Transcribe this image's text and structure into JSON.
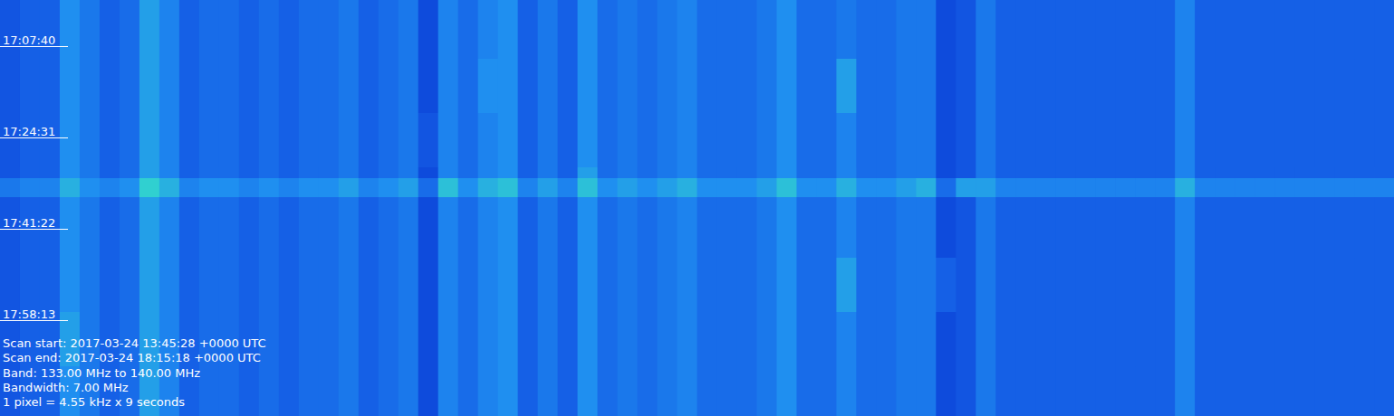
{
  "chart_data": {
    "type": "heatmap",
    "xlim": [
      133,
      140
    ],
    "ylim": [
      61150,
      65750
    ],
    "yticks": [
      {
        "value": 61660,
        "label": "17:07:40"
      },
      {
        "value": 62671,
        "label": "17:24:31"
      },
      {
        "value": 63682,
        "label": "17:41:22"
      },
      {
        "value": 64693,
        "label": "17:58:13"
      }
    ],
    "tick_labels": "y",
    "zlim": [
      0,
      10
    ],
    "x_edges": [
      133,
      133.1,
      133.2,
      133.3,
      133.4,
      133.5,
      133.6,
      133.7,
      133.8,
      133.9,
      134,
      134.1,
      134.2,
      134.3,
      134.4,
      134.5,
      134.6,
      134.7,
      134.8,
      134.9,
      135,
      135.1,
      135.2,
      135.3,
      135.4,
      135.5,
      135.6,
      135.7,
      135.8,
      135.9,
      136,
      136.1,
      136.2,
      136.3,
      136.4,
      136.5,
      136.6,
      136.7,
      136.8,
      136.9,
      137,
      137.1,
      137.2,
      137.3,
      137.4,
      137.5,
      137.6,
      137.7,
      137.8,
      137.9,
      138,
      138.1,
      138.2,
      138.3,
      138.4,
      138.5,
      138.6,
      138.7,
      138.8,
      138.9,
      139,
      139.1,
      139.2,
      139.3,
      139.4,
      139.5,
      139.6,
      139.7,
      139.8,
      139.9,
      140
    ],
    "y_edges": [
      61150,
      61800,
      62400,
      63000,
      63120,
      63330,
      64000,
      64600,
      65200,
      65750
    ],
    "cells": [
      [
        2.5,
        3,
        3,
        5,
        4,
        3,
        3.5,
        5.5,
        4.5,
        3,
        3.5,
        3.5,
        3,
        3.5,
        3,
        3.5,
        3.5,
        4,
        3,
        3.5,
        4,
        2,
        4.5,
        3.5,
        4.5,
        5,
        3,
        4,
        3,
        5,
        3.5,
        4,
        3.5,
        4,
        4.5,
        3.5,
        3.5,
        3.5,
        4,
        5,
        3.5,
        3.5,
        4,
        3.5,
        3.5,
        4,
        4,
        2,
        2.5,
        4,
        3,
        3,
        3,
        3,
        3,
        3,
        3,
        3,
        3,
        4.5,
        3,
        3,
        3,
        3,
        3,
        3,
        3,
        3,
        3,
        3
      ],
      [
        2.5,
        3,
        3,
        5,
        4,
        3,
        3.5,
        5.5,
        4.5,
        3,
        3.5,
        3.5,
        3,
        3.5,
        3,
        3.5,
        3.5,
        4,
        3,
        3.5,
        4,
        2,
        4.5,
        3.5,
        5,
        5,
        3,
        4,
        3,
        5,
        3.5,
        4,
        3.5,
        4,
        4.5,
        3.5,
        3.5,
        3.5,
        4,
        5,
        3.5,
        3.5,
        5.5,
        3.5,
        3.5,
        4,
        4,
        2,
        2.5,
        4,
        3,
        3,
        3,
        3,
        3,
        3,
        3,
        3,
        3,
        4.5,
        3,
        3,
        3,
        3,
        3,
        3,
        3,
        3,
        3,
        3
      ],
      [
        2.5,
        3,
        3,
        5,
        4,
        3,
        3.5,
        5.5,
        4.5,
        3,
        3.5,
        3.5,
        3,
        3.5,
        3,
        3.5,
        3.5,
        4,
        3,
        3.5,
        4,
        2.5,
        4.5,
        3.5,
        4.5,
        5,
        3,
        4,
        3,
        5,
        3.5,
        4,
        3.5,
        4,
        4.5,
        3.5,
        3.5,
        3.5,
        4,
        5,
        3.5,
        3.5,
        4.5,
        3.5,
        3.5,
        4,
        4,
        2,
        2.5,
        4,
        3,
        3,
        3,
        3,
        3,
        3,
        3,
        3,
        3,
        4.5,
        3,
        3,
        3,
        3,
        3,
        3,
        3,
        3,
        3,
        3
      ],
      [
        2.5,
        3,
        3,
        5,
        4,
        3,
        3.5,
        5.5,
        4.5,
        3,
        3.5,
        3.5,
        3,
        3.5,
        3,
        3.5,
        3.5,
        4,
        3,
        3.5,
        4,
        2,
        4.5,
        3.5,
        4.5,
        5,
        3,
        4,
        3,
        5.5,
        3.5,
        4,
        3.5,
        4,
        4.5,
        3.5,
        3.5,
        3.5,
        4,
        5,
        3.5,
        3.5,
        4.5,
        3.5,
        3.5,
        4,
        4,
        2,
        2.5,
        4,
        3,
        3,
        3,
        3,
        3,
        3,
        3,
        3,
        3,
        4.5,
        3,
        3,
        3,
        3,
        3,
        3,
        3,
        3,
        3,
        3
      ],
      [
        4,
        4.5,
        4.5,
        6,
        5,
        4.5,
        5,
        7,
        6,
        4.5,
        5,
        5,
        4.5,
        5,
        4.5,
        5,
        5,
        5.5,
        4.5,
        5,
        5.5,
        3.5,
        6.5,
        5,
        6,
        6.5,
        4.5,
        5.5,
        4.5,
        6.5,
        5,
        5.5,
        5,
        5.5,
        6,
        5,
        5,
        5,
        5.5,
        6.5,
        5,
        5,
        6,
        5,
        5,
        5.5,
        6,
        3.5,
        5.5,
        5.5,
        4.5,
        4.5,
        4.5,
        4.5,
        4.5,
        4.5,
        4.5,
        4.5,
        4.5,
        6,
        4.5,
        4.5,
        4.5,
        4.5,
        4.5,
        4.5,
        4.5,
        4.5,
        4.5,
        4.5
      ],
      [
        2.5,
        3,
        3,
        5,
        4,
        3,
        3.5,
        5.5,
        4.5,
        3,
        3.5,
        3.5,
        3,
        3.5,
        3,
        3.5,
        3.5,
        4,
        3,
        3.5,
        4,
        2,
        4.5,
        3.5,
        4.5,
        5,
        3,
        4,
        3,
        5,
        3.5,
        4,
        3.5,
        4,
        4.5,
        3.5,
        3.5,
        3.5,
        4,
        5,
        3.5,
        3.5,
        4.5,
        3.5,
        3.5,
        4,
        4,
        2,
        2.5,
        4,
        3,
        3,
        3,
        3,
        3,
        3,
        3,
        3,
        3,
        4.5,
        3,
        3,
        3,
        3,
        3,
        3,
        3,
        3,
        3,
        3
      ],
      [
        2.5,
        3,
        3,
        5,
        4,
        3,
        3.5,
        5.5,
        4.5,
        3,
        3.5,
        3.5,
        3,
        3.5,
        3,
        3.5,
        3.5,
        4,
        3,
        3.5,
        4,
        2,
        4.5,
        3.5,
        4.5,
        5,
        3,
        4,
        3,
        5,
        3.5,
        4,
        3.5,
        4,
        4.5,
        3.5,
        3.5,
        3.5,
        4,
        5,
        3.5,
        3.5,
        5.5,
        3.5,
        3.5,
        4,
        4,
        3,
        2.5,
        4,
        3,
        3,
        3,
        3,
        3,
        3,
        3,
        3,
        3,
        4.5,
        3,
        3,
        3,
        3,
        3,
        3,
        3,
        3,
        3,
        3
      ],
      [
        2.5,
        3,
        3,
        5.5,
        4,
        3,
        3.5,
        5.5,
        4.5,
        3,
        3.5,
        3.5,
        3,
        3.5,
        3,
        3.5,
        3.5,
        4,
        3,
        3.5,
        4,
        2,
        4.5,
        3.5,
        4.5,
        5,
        3,
        4,
        3,
        5,
        3.5,
        4,
        3.5,
        4,
        4.5,
        3.5,
        3.5,
        3.5,
        4,
        5,
        3.5,
        3.5,
        4.5,
        3.5,
        3.5,
        4,
        4,
        2,
        2.5,
        4,
        3,
        3,
        3,
        3,
        3,
        3,
        3,
        3,
        3,
        4.5,
        3,
        3,
        3,
        3,
        3,
        3,
        3,
        3,
        3,
        3
      ],
      [
        2.5,
        3,
        3,
        5,
        4,
        3,
        3.5,
        5.5,
        4.5,
        3,
        3.5,
        3.5,
        3,
        3.5,
        3,
        3.5,
        3.5,
        4,
        3,
        3.5,
        4,
        2,
        4.5,
        3.5,
        4.5,
        5,
        3,
        4,
        3,
        5,
        3.5,
        4,
        3.5,
        4,
        4.5,
        3.5,
        3.5,
        3.5,
        4,
        5,
        3.5,
        3.5,
        4.5,
        3.5,
        3.5,
        4,
        4,
        2,
        2.5,
        4,
        3,
        3,
        3,
        3,
        3,
        3,
        3,
        3,
        3,
        4.5,
        3,
        3,
        3,
        3,
        3,
        3,
        3,
        3,
        3,
        3
      ]
    ],
    "annotations": [
      "Scan start: 2017-03-24 13:45:28 +0000 UTC",
      "Scan end: 2017-03-24 18:15:18 +0000 UTC",
      "Band: 133.00 MHz to 140.00 MHz",
      "Bandwidth: 7.00 MHz",
      "1 pixel = 4.55 kHz x 9 seconds"
    ]
  }
}
